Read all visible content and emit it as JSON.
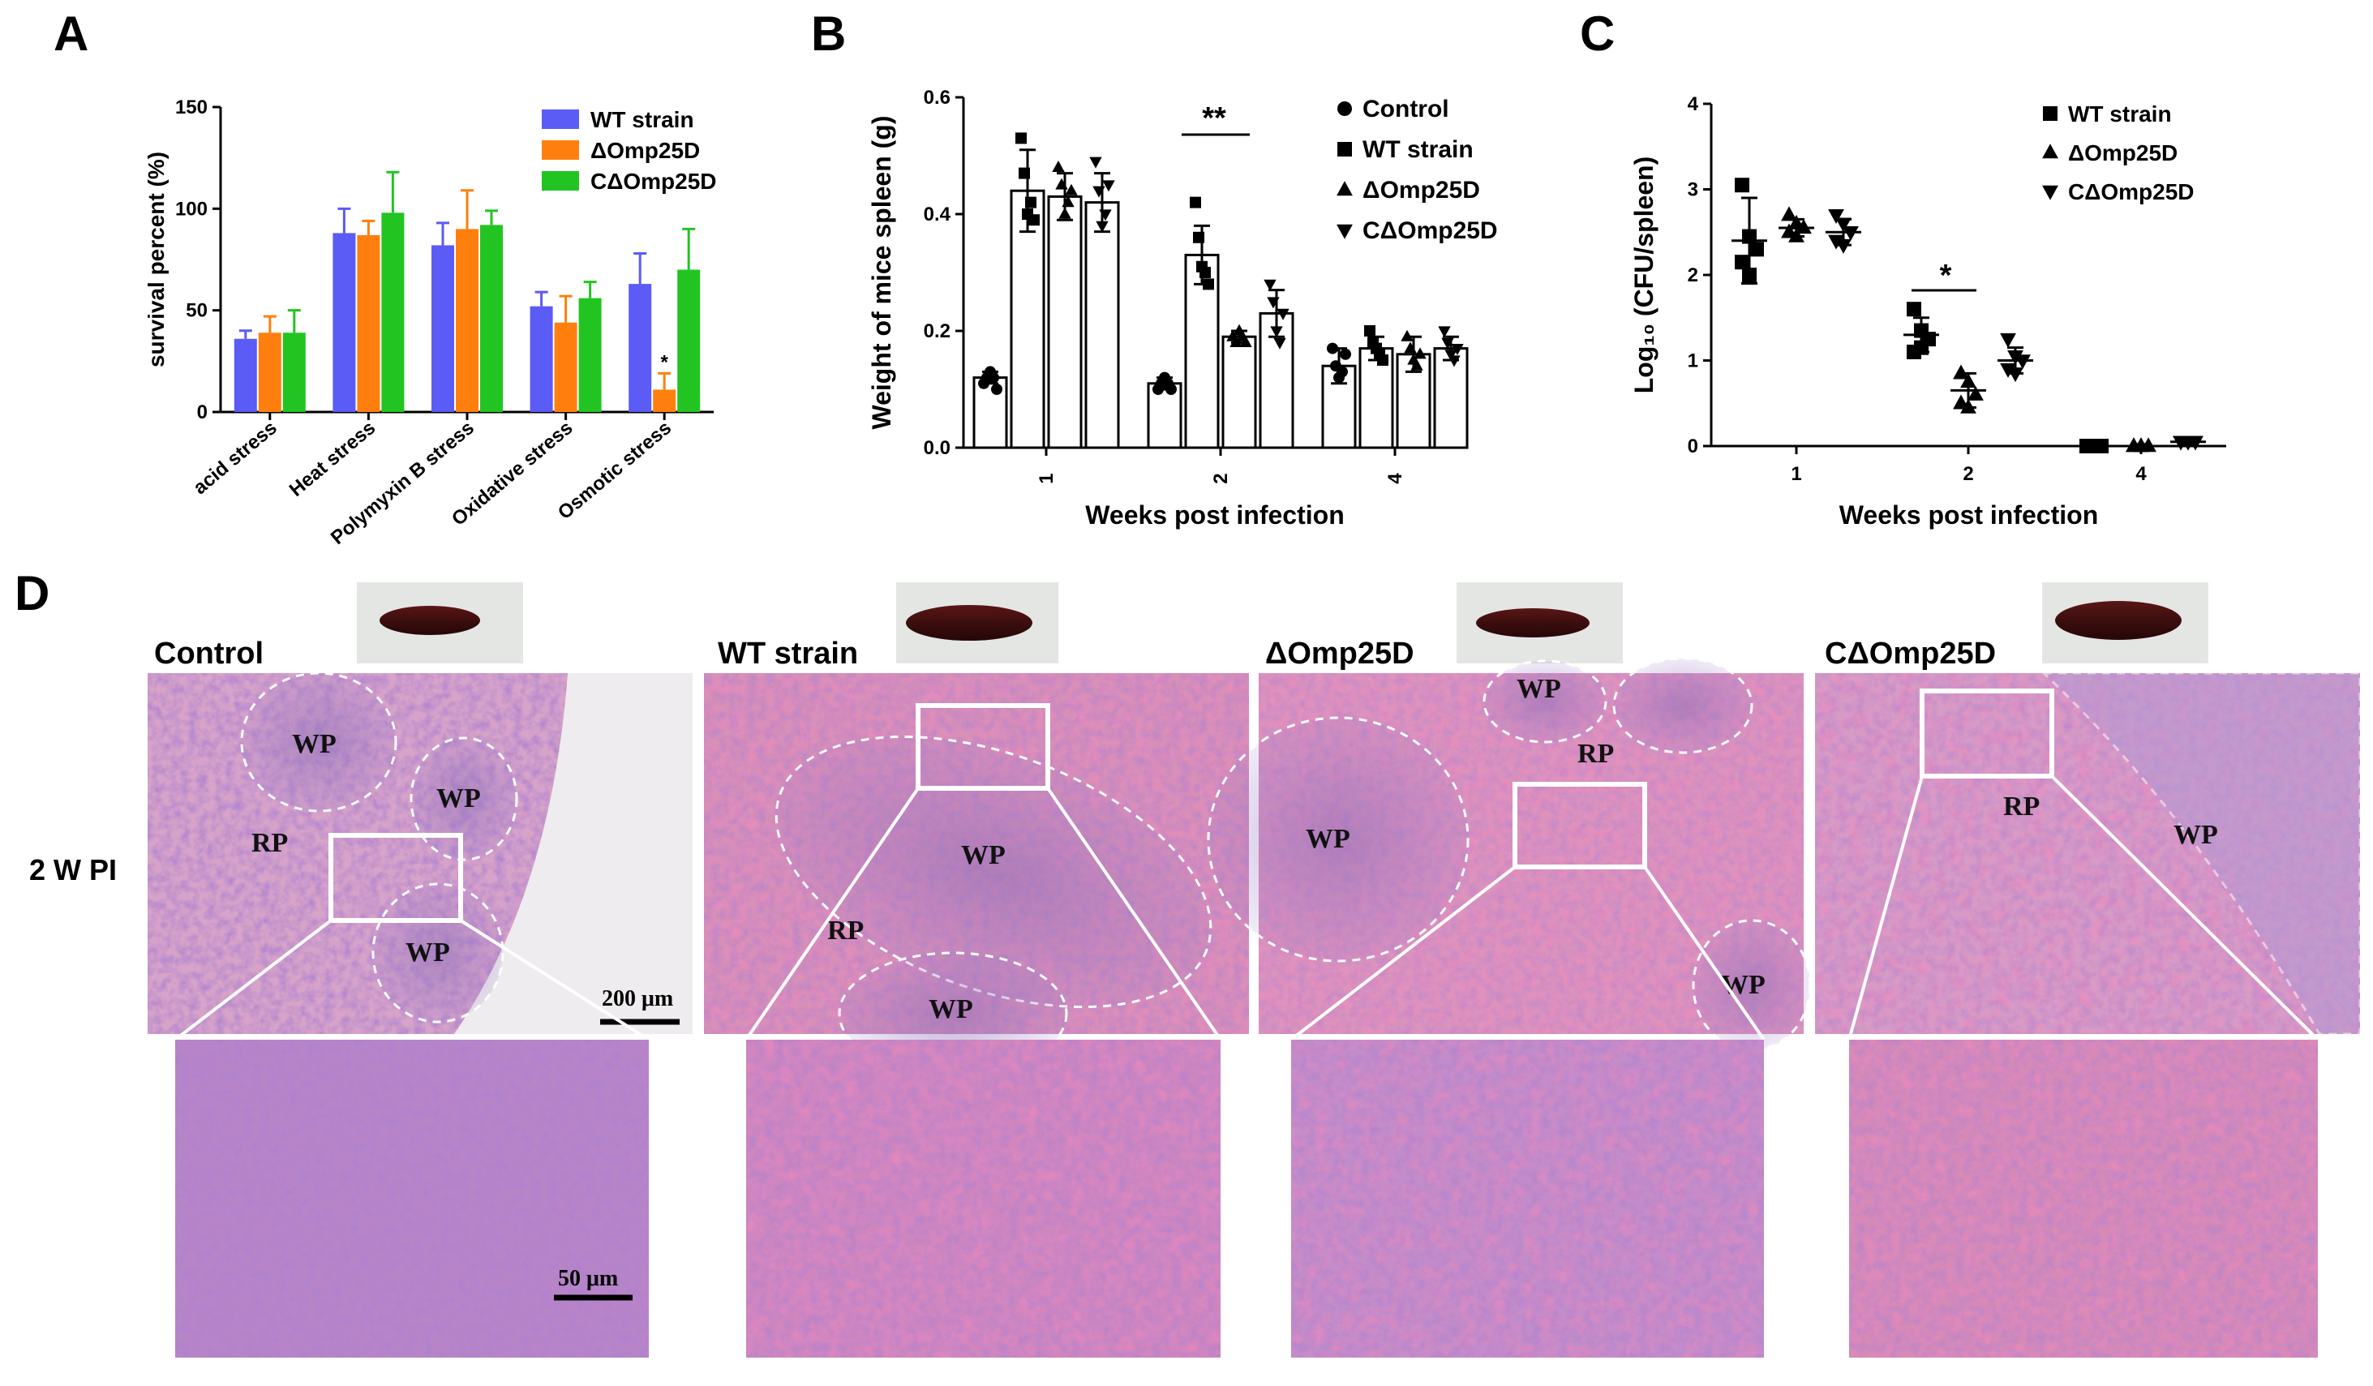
{
  "panel_labels": {
    "a": "A",
    "b": "B",
    "c": "C",
    "d": "D"
  },
  "colors": {
    "wt": "#5b5bf5",
    "delta": "#ff7f0e",
    "comp": "#22c422"
  },
  "chart_data": [
    {
      "id": "A",
      "type": "bar",
      "title": "",
      "xlabel": "",
      "ylabel": "survival percent (%)",
      "ylim": [
        0,
        150
      ],
      "yticks": [
        "0",
        "50",
        "100",
        "150"
      ],
      "categories": [
        "acid stress",
        "Heat stress",
        "Polymyxin B stress",
        "Oxidative stress",
        "Osmotic stress"
      ],
      "series": [
        {
          "name": "WT strain",
          "values": [
            36,
            88,
            82,
            52,
            63
          ],
          "errors": [
            4,
            12,
            11,
            7,
            15
          ]
        },
        {
          "name": "ΔOmp25D",
          "values": [
            39,
            87,
            90,
            44,
            11
          ],
          "errors": [
            8,
            7,
            19,
            13,
            8
          ]
        },
        {
          "name": "CΔOmp25D",
          "values": [
            39,
            98,
            92,
            56,
            70
          ],
          "errors": [
            11,
            20,
            7,
            8,
            20
          ]
        }
      ],
      "legend_position": "top-right",
      "annotations": [
        {
          "text": "*",
          "category": "Osmotic stress",
          "series": "ΔOmp25D"
        }
      ]
    },
    {
      "id": "B",
      "type": "bar",
      "title": "",
      "xlabel": "Weeks post infection",
      "ylabel": "Weight of mice spleen (g)",
      "ylim": [
        0,
        0.6
      ],
      "yticks": [
        "0.0",
        "0.2",
        "0.4",
        "0.6"
      ],
      "categories": [
        "1",
        "2",
        "4"
      ],
      "series": [
        {
          "name": "Control",
          "marker": "circle",
          "values": [
            0.12,
            0.11,
            0.14
          ],
          "errors": [
            0.01,
            0.01,
            0.03
          ]
        },
        {
          "name": "WT strain",
          "marker": "square",
          "values": [
            0.44,
            0.33,
            0.17
          ],
          "errors": [
            0.07,
            0.05,
            0.02
          ]
        },
        {
          "name": "ΔOmp25D",
          "marker": "triangle-up",
          "values": [
            0.43,
            0.19,
            0.16
          ],
          "errors": [
            0.04,
            0.01,
            0.03
          ]
        },
        {
          "name": "CΔOmp25D",
          "marker": "triangle-down",
          "values": [
            0.42,
            0.23,
            0.17
          ],
          "errors": [
            0.05,
            0.04,
            0.02
          ]
        }
      ],
      "points": [
        [
          [
            0.11,
            0.12,
            0.13,
            0.12,
            0.1
          ],
          [
            0.53,
            0.47,
            0.4,
            0.42,
            0.39
          ],
          [
            0.48,
            0.45,
            0.4,
            0.42,
            0.44
          ],
          [
            0.49,
            0.44,
            0.38,
            0.4,
            0.45
          ]
        ],
        [
          [
            0.1,
            0.11,
            0.12,
            0.11,
            0.1
          ],
          [
            0.42,
            0.36,
            0.31,
            0.3,
            0.28
          ],
          [
            0.19,
            0.18,
            0.2,
            0.19,
            0.18
          ],
          [
            0.28,
            0.25,
            0.2,
            0.18,
            0.23
          ]
        ],
        [
          [
            0.17,
            0.14,
            0.12,
            0.13,
            0.16
          ],
          [
            0.2,
            0.18,
            0.17,
            0.16,
            0.15
          ],
          [
            0.19,
            0.17,
            0.15,
            0.14,
            0.16
          ],
          [
            0.2,
            0.18,
            0.16,
            0.15,
            0.17
          ]
        ]
      ],
      "legend_position": "top-right",
      "annotations": [
        {
          "text": "**",
          "category": "2"
        }
      ]
    },
    {
      "id": "C",
      "type": "scatter",
      "title": "",
      "xlabel": "Weeks post infection",
      "ylabel": "Log₁₀ (CFU/spleen)",
      "ylim": [
        0,
        4
      ],
      "yticks": [
        "0",
        "1",
        "2",
        "3",
        "4"
      ],
      "categories": [
        "1",
        "2",
        "4"
      ],
      "series": [
        {
          "name": "WT strain",
          "marker": "square",
          "means": [
            2.4,
            1.3,
            0.0
          ],
          "errors": [
            0.5,
            0.2,
            0.02
          ],
          "points": [
            [
              3.05,
              2.45,
              2.3,
              2.15,
              2.0
            ],
            [
              1.6,
              1.35,
              1.25,
              1.1,
              1.15
            ],
            [
              0,
              0,
              0,
              0,
              0
            ]
          ]
        },
        {
          "name": "ΔOmp25D",
          "marker": "triangle-up",
          "means": [
            2.55,
            0.65,
            0.0
          ],
          "errors": [
            0.1,
            0.2,
            0.02
          ],
          "points": [
            [
              2.7,
              2.6,
              2.55,
              2.5,
              2.45
            ],
            [
              0.85,
              0.75,
              0.6,
              0.5,
              0.45
            ],
            [
              0,
              0,
              0,
              0,
              0
            ]
          ]
        },
        {
          "name": "CΔOmp25D",
          "marker": "triangle-down",
          "means": [
            2.5,
            1.0,
            0.05
          ],
          "errors": [
            0.15,
            0.15,
            0.03
          ],
          "points": [
            [
              2.7,
              2.6,
              2.5,
              2.4,
              2.35
            ],
            [
              1.25,
              1.05,
              1.0,
              0.9,
              0.85
            ],
            [
              0.05,
              0.05,
              0.05,
              0.05,
              0.05
            ]
          ]
        }
      ],
      "legend_position": "top-right",
      "annotations": [
        {
          "text": "*",
          "category": "2"
        }
      ]
    }
  ],
  "histology": {
    "row_label": "2 W PI",
    "panels": [
      {
        "title": "Control",
        "regions": [
          "WP",
          "WP",
          "RP",
          "WP"
        ],
        "scale_top": "200 μm",
        "scale_bottom": "50 μm"
      },
      {
        "title": "WT strain",
        "regions": [
          "WP",
          "RP",
          "WP"
        ]
      },
      {
        "title": "ΔOmp25D",
        "regions": [
          "WP",
          "WP",
          "RP",
          "WP"
        ]
      },
      {
        "title": "CΔOmp25D",
        "regions": [
          "RP",
          "WP"
        ]
      }
    ]
  }
}
